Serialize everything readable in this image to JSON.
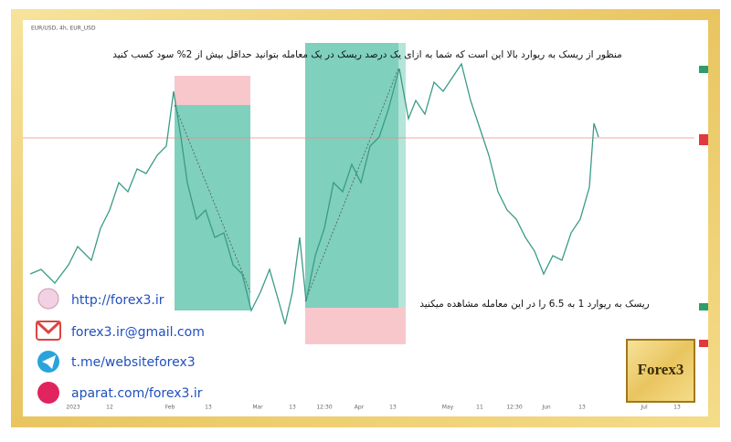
{
  "chart_header": "EUR/USD, 4h, EUR_USD",
  "annotations": {
    "top": "منظور از ریسک به ریوارد بالا این است که شما به ازای یک درصد ریسک در یک معامله بتوانید حداقل بیش از 2% سود کسب کنید",
    "bottom": "ریسک به ریوارد 1 به 6.5  را در این معامله مشاهده میکنید"
  },
  "x_axis_labels": [
    "2023",
    "12",
    "Feb",
    "13",
    "Mar",
    "13",
    "12:30",
    "Apr",
    "13",
    "May",
    "11",
    "12:30",
    "Jun",
    "13",
    "Jul",
    "13"
  ],
  "contacts": [
    "http://forex3.ir",
    "forex3.ir@gmail.com",
    "t.me/websiteforex3",
    "aparat.com/forex3.ir"
  ],
  "logo": "Forex3"
}
